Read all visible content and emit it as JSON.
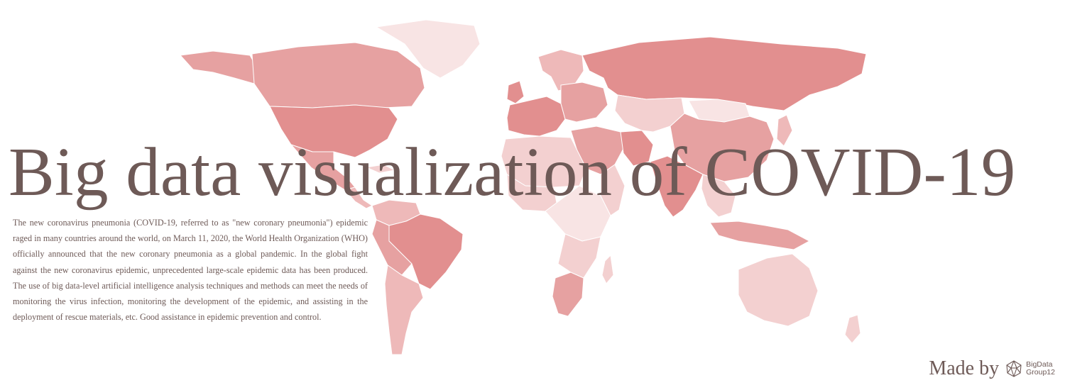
{
  "title": "Big data visualization of COVID-19",
  "intro": "The new coronavirus pneumonia (COVID-19, referred to as \"new coronary pneumonia\") epidemic raged in many countries around the world, on March 11, 2020, the World Health Organization (WHO) officially announced that the new coronary pneumonia as a global pandemic. In the global fight against the new coronavirus epidemic, unprecedented large-scale epidemic data has been produced. The use of big data-level artificial intelligence analysis techniques and methods can meet the needs of monitoring the virus infection, monitoring the development of the epidemic, and assisting in the deployment of rescue materials, etc. Good assistance in epidemic prevention and control.",
  "credit": {
    "made_by": "Made by",
    "logo_line1": "BigData",
    "logo_line2": "Group12",
    "logo_icon": "network-sphere-icon"
  },
  "colors": {
    "title": "#6e5a57",
    "body_text": "#6e5a57",
    "map_high": "#e28f8f",
    "map_mid_high": "#e6a1a1",
    "map_mid": "#eeb9b9",
    "map_low": "#f3d0d0",
    "map_lowest": "#f8e4e4",
    "map_border": "#ffffff"
  }
}
